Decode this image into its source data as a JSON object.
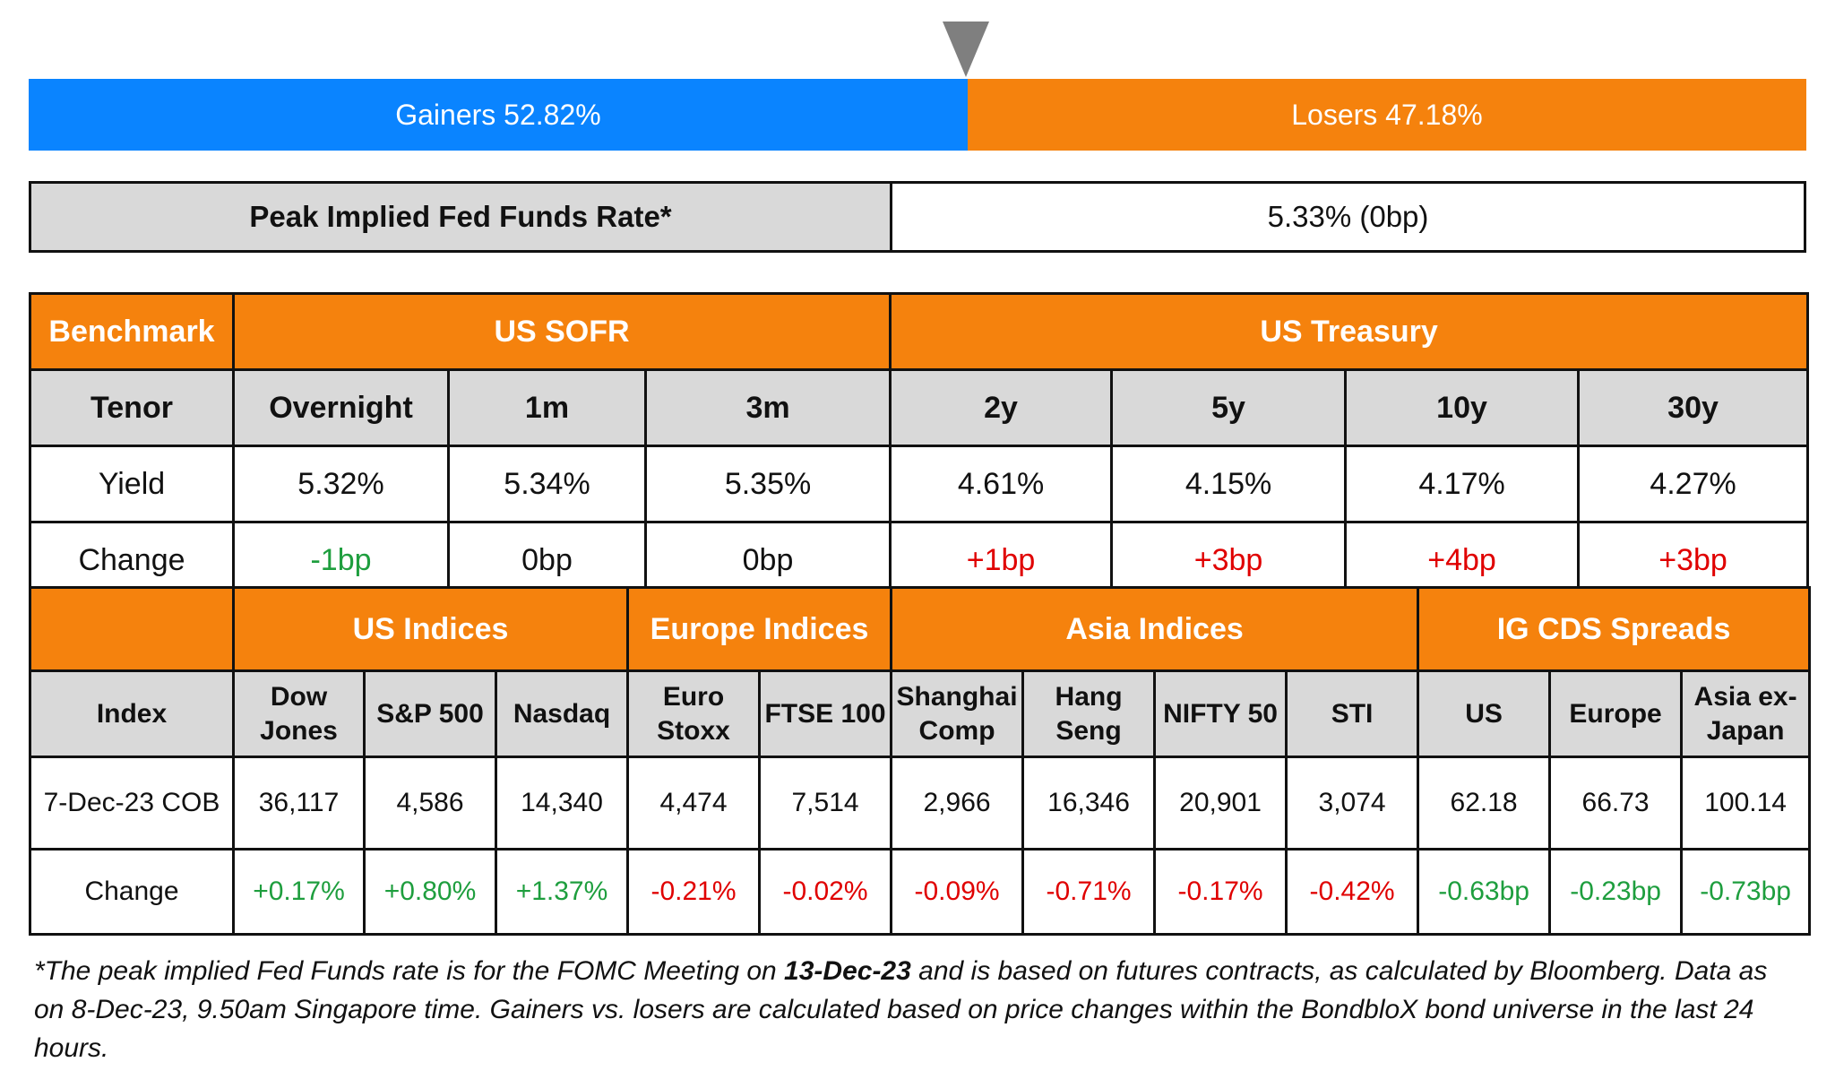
{
  "market_bar": {
    "gainers_label": "Gainers 52.82%",
    "losers_label": "Losers 47.18%",
    "gainers_pct": 52.82,
    "losers_pct": 47.18,
    "gainers_color": "#0a84ff",
    "losers_color": "#f5820d",
    "marker_icon": "triangle-down-icon"
  },
  "peak_rate": {
    "label": "Peak Implied Fed Funds Rate*",
    "value": "5.33% (0bp)"
  },
  "rates_table": {
    "benchmark_label": "Benchmark",
    "sofr_label": "US SOFR",
    "treasury_label": "US Treasury",
    "tenor_label": "Tenor",
    "yield_label": "Yield",
    "change_label": "Change",
    "columns": [
      {
        "tenor": "Overnight",
        "yield": "5.32%",
        "change": "-1bp",
        "dir": "neg"
      },
      {
        "tenor": "1m",
        "yield": "5.34%",
        "change": "0bp",
        "dir": "flat"
      },
      {
        "tenor": "3m",
        "yield": "5.35%",
        "change": "0bp",
        "dir": "flat"
      },
      {
        "tenor": "2y",
        "yield": "4.61%",
        "change": "+1bp",
        "dir": "pos"
      },
      {
        "tenor": "5y",
        "yield": "4.15%",
        "change": "+3bp",
        "dir": "pos"
      },
      {
        "tenor": "10y",
        "yield": "4.17%",
        "change": "+4bp",
        "dir": "pos"
      },
      {
        "tenor": "30y",
        "yield": "4.27%",
        "change": "+3bp",
        "dir": "pos"
      }
    ]
  },
  "indices_table": {
    "groups": {
      "us": "US Indices",
      "europe": "Europe Indices",
      "asia": "Asia Indices",
      "cds": "IG CDS Spreads"
    },
    "index_label": "Index",
    "cob_label": "7-Dec-23 COB",
    "change_label": "Change",
    "columns": [
      {
        "name_1": "Dow",
        "name_2": "Jones",
        "value": "36,117",
        "change": "+0.17%"
      },
      {
        "name_1": "S&P 500",
        "name_2": "",
        "value": "4,586",
        "change": "+0.80%"
      },
      {
        "name_1": "Nasdaq",
        "name_2": "",
        "value": "14,340",
        "change": "+1.37%"
      },
      {
        "name_1": "Euro",
        "name_2": "Stoxx",
        "value": "4,474",
        "change": "-0.21%"
      },
      {
        "name_1": "FTSE 100",
        "name_2": "",
        "value": "7,514",
        "change": "-0.02%"
      },
      {
        "name_1": "Shanghai",
        "name_2": "Comp",
        "value": "2,966",
        "change": "-0.09%"
      },
      {
        "name_1": "Hang",
        "name_2": "Seng",
        "value": "16,346",
        "change": "-0.71%"
      },
      {
        "name_1": "NIFTY 50",
        "name_2": "",
        "value": "20,901",
        "change": "-0.17%"
      },
      {
        "name_1": "STI",
        "name_2": "",
        "value": "3,074",
        "change": "-0.42%"
      },
      {
        "name_1": "US",
        "name_2": "",
        "value": "62.18",
        "change": "-0.63bp"
      },
      {
        "name_1": "Europe",
        "name_2": "",
        "value": "66.73",
        "change": "-0.23bp"
      },
      {
        "name_1": "Asia ex-",
        "name_2": "Japan",
        "value": "100.14",
        "change": "-0.73bp"
      }
    ]
  },
  "footnote": {
    "part1": "*The peak implied Fed Funds rate is for the FOMC Meeting on ",
    "bold": "13-Dec-23",
    "part2": " and is based on futures contracts, as calculated by Bloomberg. Data as on 8-Dec-23, 9.50am Singapore time. Gainers vs. losers are calculated based on price changes within the BondbloX bond universe in the last 24 hours."
  },
  "colors": {
    "header_orange": "#f5820d",
    "header_gray": "#d9d9d9",
    "up_green": "#1e9e3e",
    "down_red": "#e00000"
  }
}
